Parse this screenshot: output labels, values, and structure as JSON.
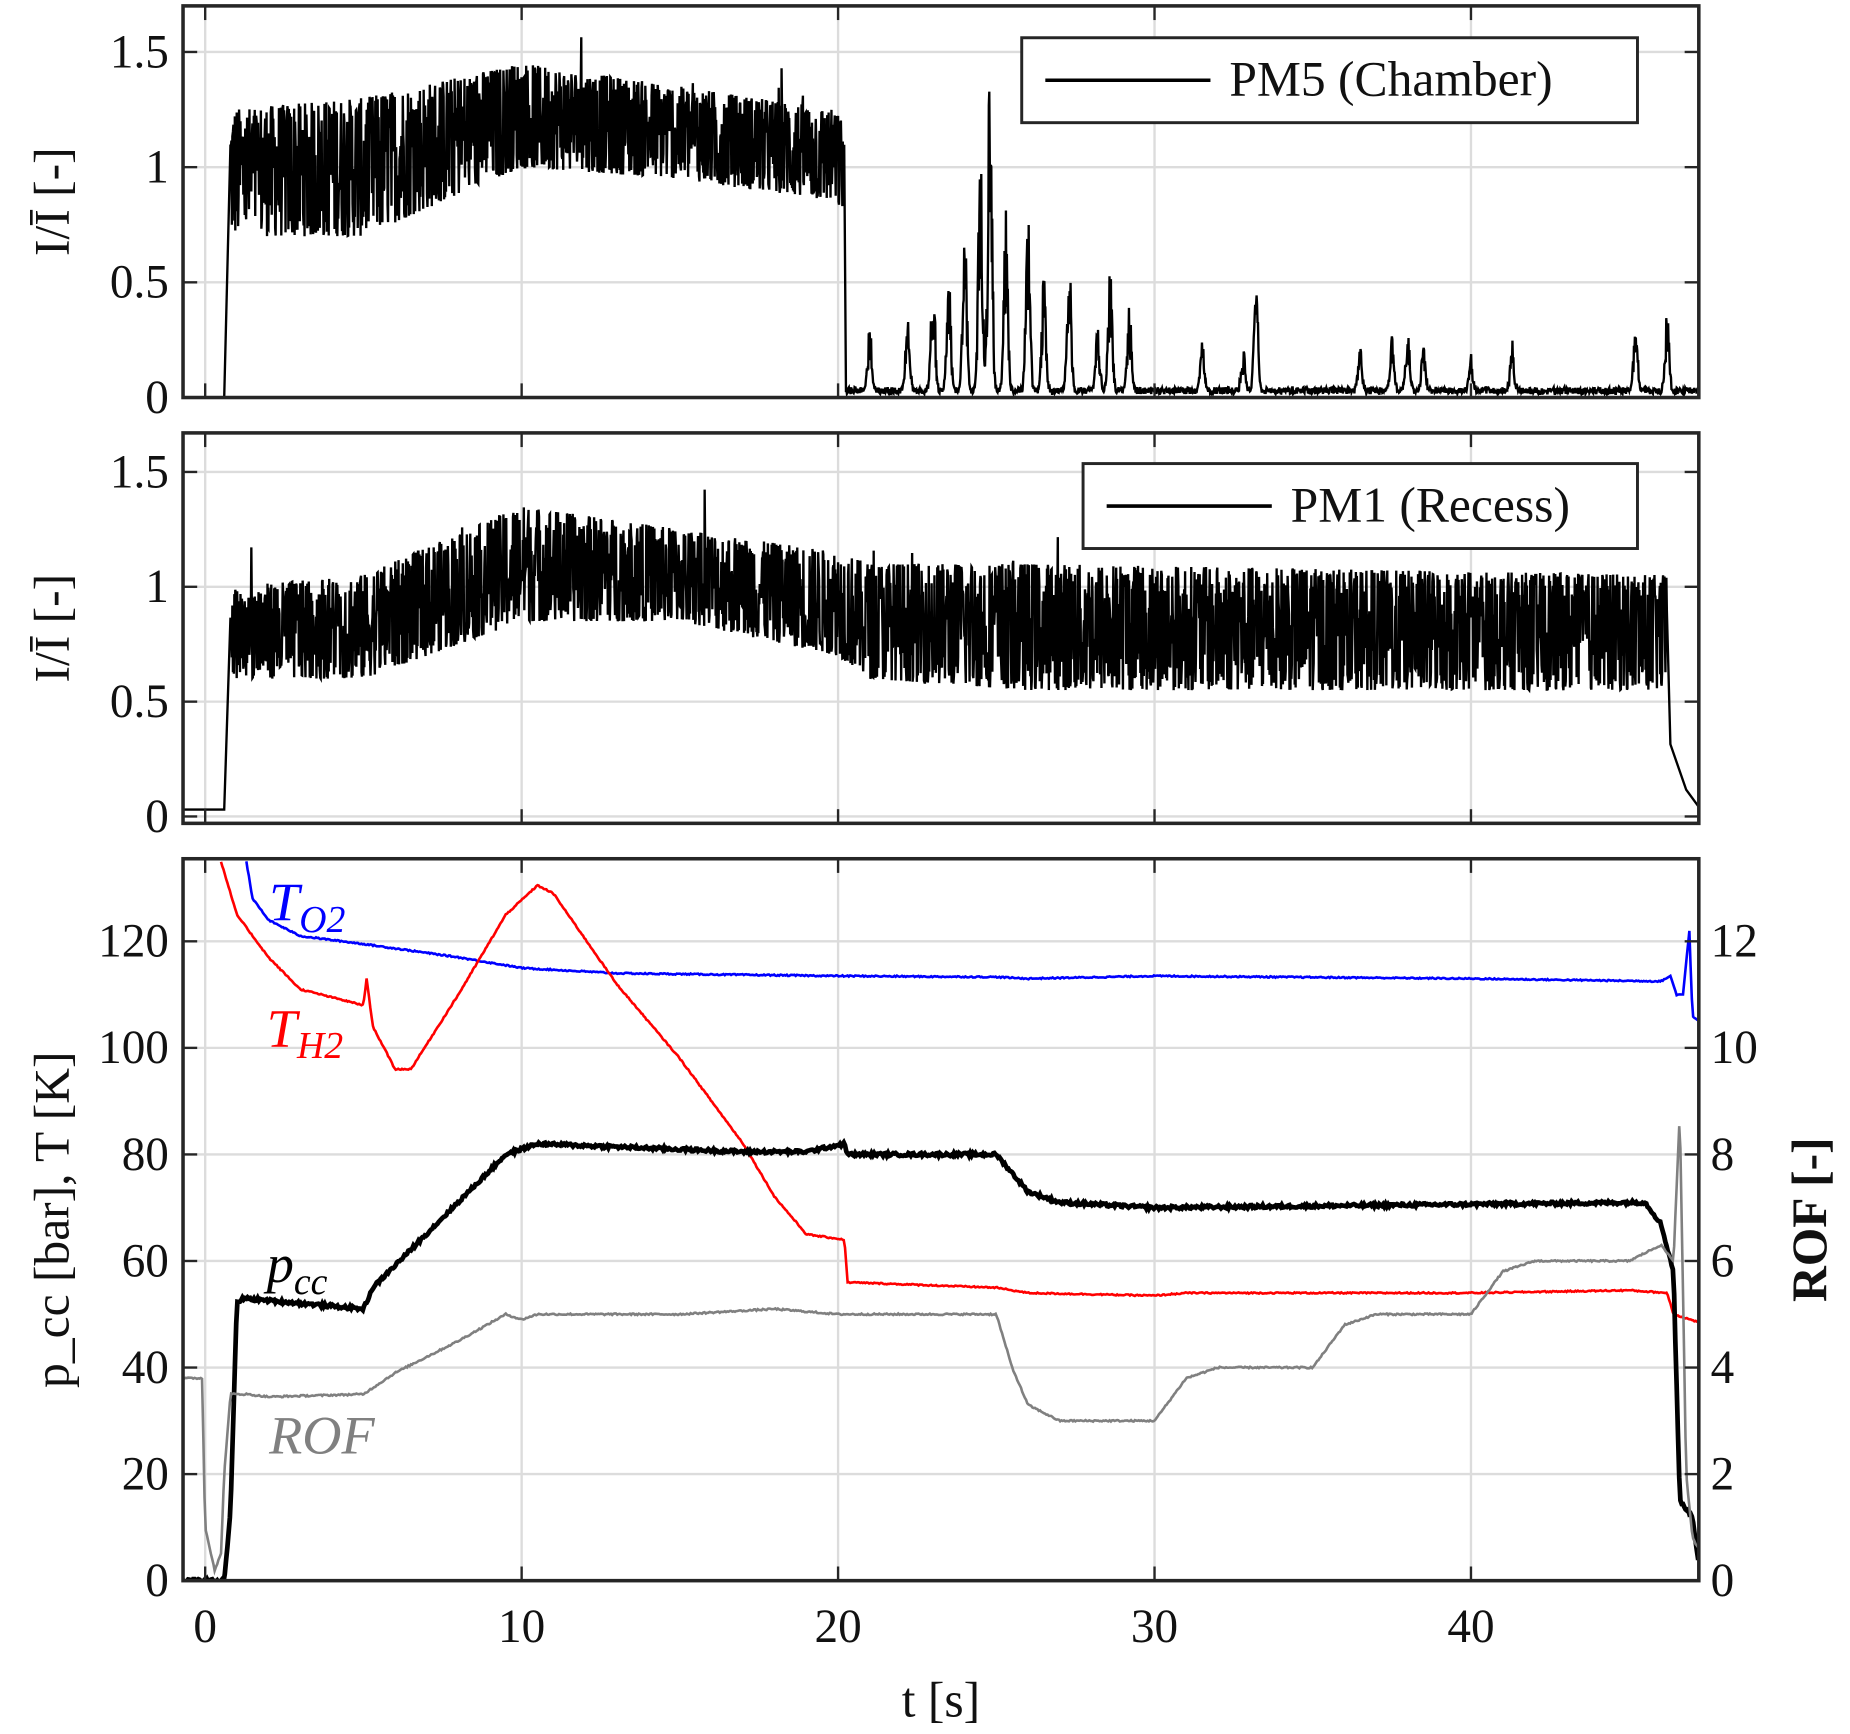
{
  "chart_data": [
    {
      "type": "line",
      "panel": "top",
      "ylabel": "I/Ī [-]",
      "xlim": [
        -0.7,
        47.2
      ],
      "ylim": [
        0,
        1.7
      ],
      "xticks": [
        0,
        10,
        20,
        30,
        40
      ],
      "yticks": [
        0,
        0.5,
        1,
        1.5
      ],
      "ytick_labels": [
        "0",
        "0.5",
        "1",
        "1.5"
      ],
      "grid": true,
      "legend": "top-right",
      "series": [
        {
          "name": "PM5 (Chamber)",
          "color": "#000000",
          "start": [
            [
              -0.7,
              0.0
            ],
            [
              0.6,
              0.0
            ]
          ],
          "band": {
            "t": [
              0.8,
              5,
              10,
              15,
              19.8,
              20.2
            ],
            "lower": [
              0.7,
              0.7,
              1.0,
              0.95,
              0.85,
              0.8
            ],
            "upper": [
              1.25,
              1.3,
              1.45,
              1.35,
              1.25,
              1.2
            ]
          },
          "after": {
            "baseline": 0.03,
            "spikes": [
              [
                21,
                0.3
              ],
              [
                22.2,
                0.35
              ],
              [
                23,
                0.55
              ],
              [
                23.5,
                0.5
              ],
              [
                24,
                0.9
              ],
              [
                24.5,
                1.2
              ],
              [
                24.8,
                1.55
              ],
              [
                25.3,
                0.8
              ],
              [
                26,
                0.85
              ],
              [
                26.5,
                0.55
              ],
              [
                27.3,
                0.65
              ],
              [
                28.2,
                0.3
              ],
              [
                28.6,
                0.55
              ],
              [
                29.2,
                0.4
              ],
              [
                31.5,
                0.25
              ],
              [
                32.8,
                0.2
              ],
              [
                33.2,
                0.55
              ],
              [
                36.5,
                0.2
              ],
              [
                37.5,
                0.25
              ],
              [
                38,
                0.25
              ],
              [
                38.5,
                0.22
              ],
              [
                40,
                0.15
              ],
              [
                41.3,
                0.23
              ],
              [
                45.2,
                0.35
              ],
              [
                46.2,
                0.37
              ]
            ]
          }
        }
      ]
    },
    {
      "type": "line",
      "panel": "middle",
      "ylabel": "I/Ī [-]",
      "xlim": [
        -0.7,
        47.2
      ],
      "ylim": [
        -0.03,
        1.67
      ],
      "xticks": [
        0,
        10,
        20,
        30,
        40
      ],
      "yticks": [
        0,
        0.5,
        1,
        1.5
      ],
      "ytick_labels": [
        "0",
        "0.5",
        "1",
        "1.5"
      ],
      "grid": true,
      "legend": "top-right",
      "series": [
        {
          "name": "PM1 (Recess)",
          "color": "#000000",
          "start": [
            [
              -0.7,
              0.03
            ],
            [
              0.6,
              0.03
            ]
          ],
          "band": {
            "t": [
              0.8,
              5,
              10,
              15,
              20,
              21,
              26,
              46.2
            ],
            "lower": [
              0.6,
              0.6,
              0.85,
              0.85,
              0.7,
              0.6,
              0.55,
              0.55
            ],
            "upper": [
              1.0,
              1.05,
              1.35,
              1.25,
              1.15,
              1.1,
              1.1,
              1.05
            ]
          },
          "end": [
            [
              46.3,
              0.3
            ],
            [
              46.8,
              0.1
            ],
            [
              47.2,
              0.02
            ]
          ]
        }
      ]
    },
    {
      "type": "line",
      "panel": "bottom",
      "xlabel": "t [s]",
      "ylabel": "p_cc [bar], T [K]",
      "ylabel_right": "ROF [-]",
      "xlim": [
        -0.7,
        47.2
      ],
      "ylim": [
        0,
        135.5
      ],
      "ylim_right": [
        0,
        13.55
      ],
      "xticks": [
        0,
        10,
        20,
        30,
        40
      ],
      "yticks": [
        0,
        20,
        40,
        60,
        80,
        100,
        120
      ],
      "yticks_right": [
        0,
        2,
        4,
        6,
        8,
        10,
        12
      ],
      "grid": true,
      "series": [
        {
          "name": "T_O2",
          "label_main": "T",
          "label_sub": "O2",
          "color": "#0000ff",
          "axis": "left",
          "points": [
            [
              1.3,
              135
            ],
            [
              1.5,
              128
            ],
            [
              2,
              124
            ],
            [
              3,
              121
            ],
            [
              5,
              119.5
            ],
            [
              8,
              117
            ],
            [
              10,
              115
            ],
            [
              13,
              114
            ],
            [
              20,
              113.5
            ],
            [
              25,
              113.3
            ],
            [
              26,
              113
            ],
            [
              30,
              113.5
            ],
            [
              40,
              113
            ],
            [
              46,
              112.5
            ],
            [
              46.3,
              113.5
            ],
            [
              46.5,
              110
            ],
            [
              46.7,
              110
            ],
            [
              46.9,
              122
            ],
            [
              47.0,
              106
            ],
            [
              47.2,
              105
            ]
          ]
        },
        {
          "name": "T_H2",
          "label_main": "T",
          "label_sub": "H2",
          "color": "#ff0000",
          "axis": "left",
          "points": [
            [
              0.5,
              135
            ],
            [
              1,
              125
            ],
            [
              2,
              117
            ],
            [
              3,
              111
            ],
            [
              5,
              108
            ],
            [
              5.1,
              113
            ],
            [
              5.3,
              104
            ],
            [
              6,
              96
            ],
            [
              6.5,
              96
            ],
            [
              8,
              110
            ],
            [
              9.5,
              125
            ],
            [
              10.5,
              130.5
            ],
            [
              11,
              129
            ],
            [
              13,
              112
            ],
            [
              15,
              98
            ],
            [
              17,
              82
            ],
            [
              18,
              72
            ],
            [
              19,
              65
            ],
            [
              20.2,
              64
            ],
            [
              20.3,
              56
            ],
            [
              25,
              55
            ],
            [
              26,
              54
            ],
            [
              30,
              53.5
            ],
            [
              31,
              54
            ],
            [
              40,
              54
            ],
            [
              45,
              54.5
            ],
            [
              46.2,
              54
            ],
            [
              46.4,
              50
            ],
            [
              47.2,
              48.5
            ]
          ]
        },
        {
          "name": "p_cc",
          "label_main": "p",
          "label_sub": "cc",
          "color": "#000000",
          "axis": "left",
          "points": [
            [
              -0.7,
              0
            ],
            [
              0.6,
              0
            ],
            [
              0.8,
              13
            ],
            [
              1.0,
              52
            ],
            [
              1.2,
              53
            ],
            [
              5,
              51
            ],
            [
              5.3,
              55
            ],
            [
              9.5,
              80
            ],
            [
              10.5,
              82
            ],
            [
              17,
              80.5
            ],
            [
              19,
              80.5
            ],
            [
              20.2,
              82
            ],
            [
              20.3,
              80
            ],
            [
              25,
              80
            ],
            [
              26,
              73
            ],
            [
              27,
              71
            ],
            [
              30,
              70
            ],
            [
              45.5,
              71
            ],
            [
              46,
              67
            ],
            [
              46.4,
              58
            ],
            [
              46.6,
              15
            ],
            [
              47,
              12
            ],
            [
              47.2,
              3
            ]
          ]
        },
        {
          "name": "ROF",
          "label_main": "ROF",
          "label_sub": "",
          "color": "#808080",
          "axis": "right",
          "points": [
            [
              -0.7,
              3.8
            ],
            [
              -0.1,
              3.8
            ],
            [
              0,
              1
            ],
            [
              0.3,
              0.2
            ],
            [
              0.5,
              0.5
            ],
            [
              0.6,
              2
            ],
            [
              0.8,
              3.5
            ],
            [
              1.3,
              3.5
            ],
            [
              2,
              3.45
            ],
            [
              5,
              3.5
            ],
            [
              6,
              3.9
            ],
            [
              8,
              4.5
            ],
            [
              9.5,
              5
            ],
            [
              10,
              4.9
            ],
            [
              10.5,
              5
            ],
            [
              15,
              5
            ],
            [
              18,
              5.1
            ],
            [
              20,
              5
            ],
            [
              25,
              5
            ],
            [
              25.5,
              4
            ],
            [
              26,
              3.3
            ],
            [
              27,
              3
            ],
            [
              30,
              3
            ],
            [
              31,
              3.8
            ],
            [
              32,
              4
            ],
            [
              35,
              4
            ],
            [
              36,
              4.8
            ],
            [
              37,
              5
            ],
            [
              40,
              5
            ],
            [
              41,
              5.8
            ],
            [
              42,
              6
            ],
            [
              45,
              6
            ],
            [
              46,
              6.3
            ],
            [
              46.4,
              6
            ],
            [
              46.6,
              8.8
            ],
            [
              46.8,
              2
            ],
            [
              47,
              0.8
            ],
            [
              47.2,
              0.6
            ]
          ]
        }
      ]
    }
  ]
}
